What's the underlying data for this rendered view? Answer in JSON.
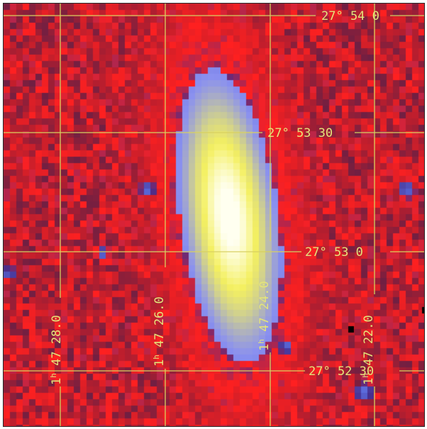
{
  "image": {
    "subject": "galaxy-false-color",
    "colormap": {
      "background": "#b01e30",
      "noise_dark": "#55204a",
      "noise_bright": "#ff2020",
      "halo": "#5868d8",
      "mid": "#8a90f0",
      "core": "#f4f060",
      "center": "#fffff0",
      "grid": "#d8d060"
    }
  },
  "coordinate_grid": {
    "declination_labels": [
      {
        "text": "27° 54 0"
      },
      {
        "text": "27° 53 30"
      },
      {
        "text": "27° 53 0"
      },
      {
        "text": "27° 52 30"
      }
    ],
    "ra_labels": [
      {
        "text": "1h 47 28.0",
        "hours": "1",
        "rest": " 47 28.0"
      },
      {
        "text": "1h 47 26.0",
        "hours": "1",
        "rest": " 47 26.0"
      },
      {
        "text": "1h 47 24.0",
        "hours": "1",
        "rest": " 47 24.0"
      },
      {
        "text": "1h 47 22.0",
        "hours": "1",
        "rest": " 47 22.0"
      }
    ]
  }
}
